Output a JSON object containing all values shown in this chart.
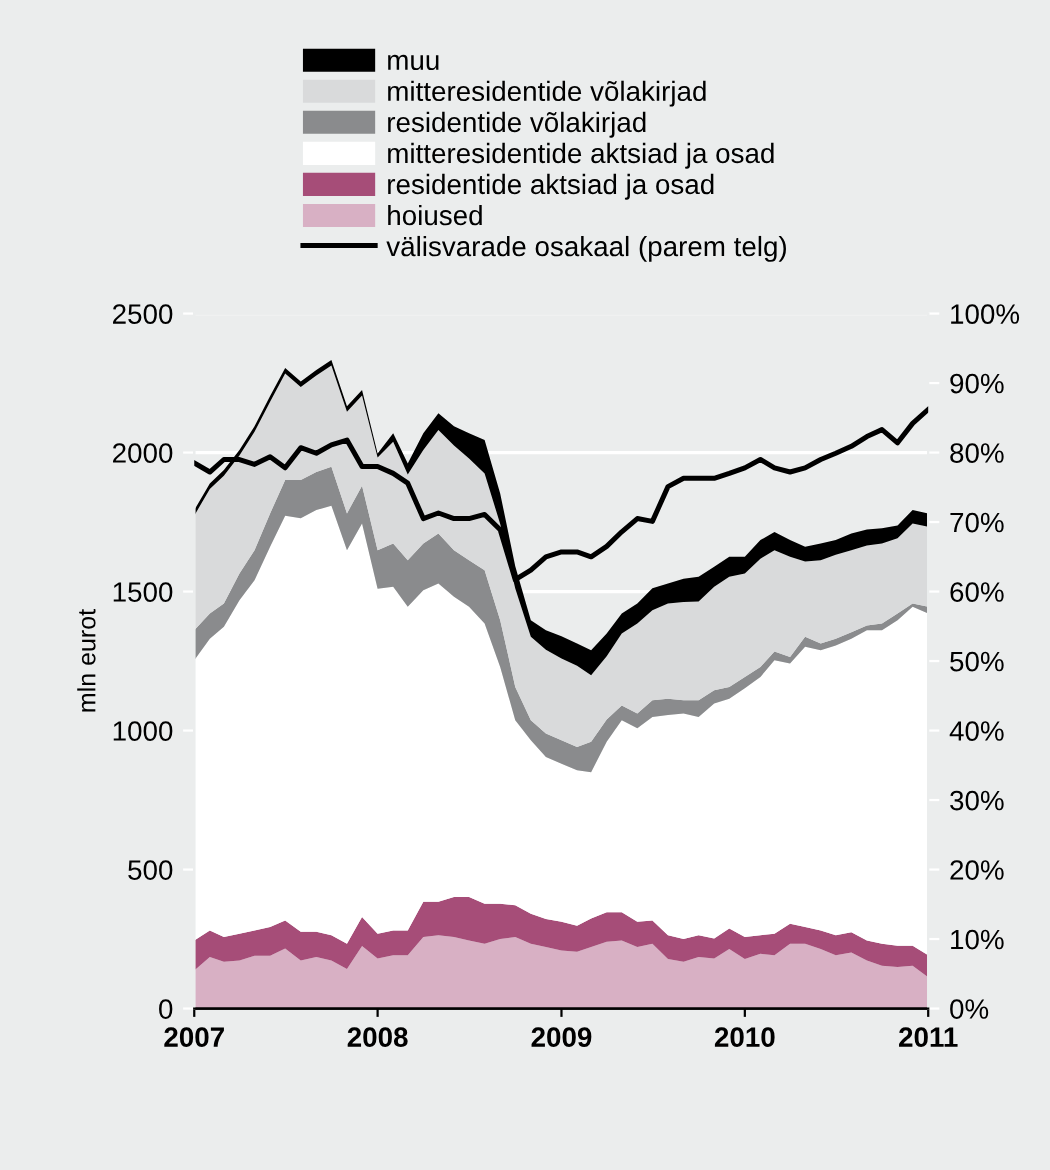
{
  "chart_data": {
    "type": "area",
    "stacked": true,
    "ylabel": "mln eurot",
    "legend": "top",
    "grid": "y",
    "x": [
      "2007-01",
      "2007-02",
      "2007-03",
      "2007-04",
      "2007-05",
      "2007-06",
      "2007-07",
      "2007-08",
      "2007-09",
      "2007-10",
      "2007-11",
      "2007-12",
      "2008-01",
      "2008-02",
      "2008-03",
      "2008-04",
      "2008-05",
      "2008-06",
      "2008-07",
      "2008-08",
      "2008-09",
      "2008-10",
      "2008-11",
      "2008-12",
      "2009-01",
      "2009-02",
      "2009-03",
      "2009-04",
      "2009-05",
      "2009-06",
      "2009-07",
      "2009-08",
      "2009-09",
      "2009-10",
      "2009-11",
      "2009-12",
      "2010-01",
      "2010-02",
      "2010-03",
      "2010-04",
      "2010-05",
      "2010-06",
      "2010-07",
      "2010-08",
      "2010-09",
      "2010-10",
      "2010-11",
      "2010-12",
      "2011-01"
    ],
    "xlim": [
      "2007-01",
      "2011-01"
    ],
    "xticks": [
      {
        "value": "2007-01",
        "label": "2007"
      },
      {
        "value": "2008-01",
        "label": "2008"
      },
      {
        "value": "2009-01",
        "label": "2009"
      },
      {
        "value": "2010-01",
        "label": "2010"
      },
      {
        "value": "2011-01",
        "label": "2011"
      }
    ],
    "ylim": [
      0,
      2500
    ],
    "yticks": [
      0,
      500,
      1000,
      1500,
      2000,
      2500
    ],
    "y2lim": [
      0,
      100
    ],
    "y2ticks": [
      {
        "value": 0,
        "label": "0%"
      },
      {
        "value": 10,
        "label": "10%"
      },
      {
        "value": 20,
        "label": "20%"
      },
      {
        "value": 30,
        "label": "30%"
      },
      {
        "value": 40,
        "label": "40%"
      },
      {
        "value": 50,
        "label": "50%"
      },
      {
        "value": 60,
        "label": "60%"
      },
      {
        "value": 70,
        "label": "70%"
      },
      {
        "value": 80,
        "label": "80%"
      },
      {
        "value": 90,
        "label": "90%"
      },
      {
        "value": 100,
        "label": "100%"
      }
    ],
    "series": [
      {
        "name": "hoiused",
        "color": "#d8b0c4",
        "values": [
          137,
          185,
          168,
          173,
          190,
          190,
          216,
          173,
          185,
          173,
          142,
          225,
          180,
          192,
          192,
          257,
          264,
          257,
          245,
          233,
          250,
          257,
          233,
          221,
          209,
          204,
          221,
          240,
          245,
          221,
          233,
          178,
          168,
          185,
          180,
          214,
          178,
          197,
          192,
          233,
          233,
          214,
          192,
          202,
          173,
          154,
          149,
          154,
          113
        ]
      },
      {
        "name": "residentide aktsiad ja osad",
        "color": "#a64d78",
        "values": [
          108,
          96,
          89,
          96,
          91,
          103,
          101,
          103,
          91,
          91,
          91,
          104,
          89,
          89,
          89,
          127,
          120,
          144,
          156,
          144,
          127,
          115,
          108,
          101,
          103,
          94,
          103,
          106,
          101,
          91,
          84,
          86,
          82,
          79,
          72,
          74,
          79,
          67,
          77,
          72,
          60,
          67,
          72,
          72,
          72,
          79,
          77,
          72,
          79
        ]
      },
      {
        "name": "mitteresidentide aktsiad ja osad",
        "color": "#ffffff",
        "values": [
          1008,
          1049,
          1116,
          1200,
          1260,
          1368,
          1456,
          1488,
          1517,
          1545,
          1416,
          1416,
          1241,
          1236,
          1164,
          1121,
          1145,
          1080,
          1044,
          1008,
          852,
          665,
          624,
          583,
          569,
          559,
          526,
          614,
          691,
          696,
          732,
          792,
          811,
          785,
          845,
          826,
          895,
          929,
          984,
          936,
          1008,
          1008,
          1042,
          1056,
          1116,
          1128,
          1171,
          1219,
          1229
        ]
      },
      {
        "name": "residentide võlakirjad",
        "color": "#8a8b8d",
        "values": [
          108,
          91,
          84,
          96,
          108,
          120,
          128,
          137,
          137,
          140,
          132,
          136,
          139,
          156,
          168,
          168,
          180,
          168,
          168,
          192,
          168,
          120,
          72,
          84,
          84,
          84,
          110,
          80,
          53,
          53,
          60,
          58,
          48,
          60,
          48,
          43,
          41,
          36,
          31,
          24,
          36,
          24,
          24,
          24,
          17,
          24,
          24,
          12,
          24
        ]
      },
      {
        "name": "mitteresidentide võlakirjad",
        "color": "#d9dadb",
        "values": [
          412,
          448,
          460,
          424,
          426,
          402,
          383,
          335,
          347,
          364,
          366,
          324,
          333,
          366,
          308,
          336,
          372,
          376,
          366,
          348,
          346,
          354,
          300,
          302,
          294,
          292,
          239,
          227,
          259,
          324,
          324,
          343,
          353,
          355,
          372,
          396,
          372,
          389,
          365,
          360,
          271,
          300,
          302,
          295,
          288,
          288,
          271,
          288,
          288
        ]
      },
      {
        "name": "muu",
        "color": "#000000",
        "values": [
          20,
          20,
          20,
          20,
          20,
          20,
          20,
          20,
          20,
          20,
          20,
          20,
          15,
          30,
          40,
          60,
          60,
          70,
          90,
          120,
          110,
          80,
          60,
          70,
          80,
          80,
          90,
          82,
          72,
          72,
          79,
          72,
          84,
          89,
          72,
          72,
          60,
          67,
          65,
          60,
          53,
          60,
          53,
          60,
          57,
          55,
          46,
          48,
          48
        ]
      },
      {
        "name": "välisvarade osakaal (parem telg)",
        "type": "line",
        "axis": "y2",
        "color": "#000000",
        "line_style": "solid",
        "values": [
          78.5,
          77.2,
          79,
          79,
          78.3,
          79.4,
          77.8,
          80.7,
          79.9,
          81.1,
          81.8,
          78,
          78,
          77,
          75.6,
          70.5,
          71.3,
          70.5,
          70.5,
          71.1,
          68.9,
          61.7,
          63.1,
          65,
          65.7,
          65.7,
          65,
          66.5,
          68.6,
          70.5,
          70.1,
          75.1,
          76.3,
          76.3,
          76.3,
          77,
          77.8,
          79,
          77.8,
          77.2,
          77.8,
          79,
          79.9,
          80.9,
          82.3,
          83.3,
          81.4,
          84.2,
          86.2
        ]
      }
    ]
  }
}
